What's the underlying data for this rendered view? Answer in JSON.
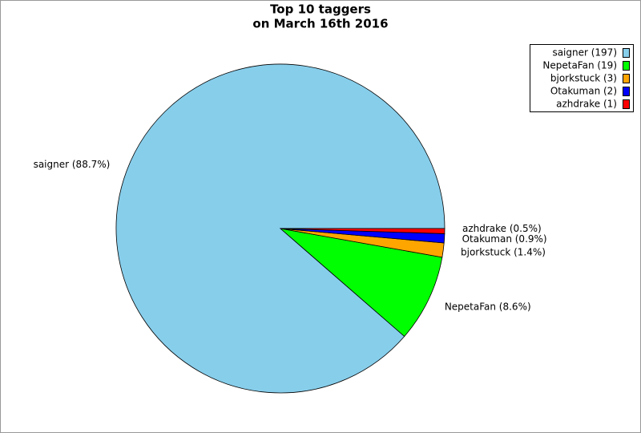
{
  "chart_data": {
    "type": "pie",
    "title": "Top 10 taggers",
    "subtitle": "on March 16th 2016",
    "series": [
      {
        "name": "saigner (197)",
        "color": "#87ceeb",
        "values": [
          88.7
        ],
        "value_labels": [
          "saigner (88.7%)"
        ]
      },
      {
        "name": "NepetaFan (19)",
        "color": "#00ff00",
        "values": [
          8.6
        ],
        "value_labels": [
          "NepetaFan (8.6%)"
        ]
      },
      {
        "name": "bjorkstuck (3)",
        "color": "#ffa500",
        "values": [
          1.4
        ],
        "value_labels": [
          "bjorkstuck (1.4%)"
        ]
      },
      {
        "name": "Otakuman (2)",
        "color": "#0000ff",
        "values": [
          0.9
        ],
        "value_labels": [
          "Otakuman (0.9%)"
        ]
      },
      {
        "name": "azhdrake (1)",
        "color": "#ff0000",
        "values": [
          0.5
        ],
        "value_labels": [
          "azhdrake (0.5%)"
        ]
      }
    ],
    "legend": "top-right"
  }
}
